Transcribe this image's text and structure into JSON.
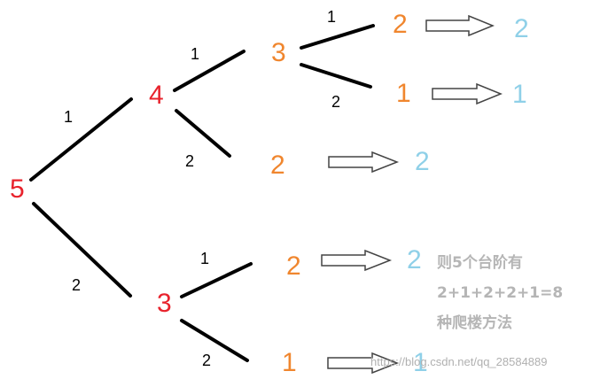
{
  "colors": {
    "root": "#e8232d",
    "mid": "#e8232d",
    "orange": "#f0862e",
    "cyan": "#8fd0e8",
    "line": "#000000",
    "note": "#b5b5b5"
  },
  "tree": {
    "root": "5",
    "n4": "4",
    "n3a": "3",
    "n3b": "3",
    "leaf_3a_1": "2",
    "leaf_3a_2": "1",
    "leaf_4_2": "2",
    "leaf_3b_1": "2",
    "leaf_3b_2": "1",
    "result_1": "2",
    "result_2": "1",
    "result_3": "2",
    "result_4": "2",
    "result_5": "1"
  },
  "edges": {
    "root_to_4": "1",
    "root_to_3": "2",
    "n4_to_3": "1",
    "n4_to_2": "2",
    "n3a_to_2": "1",
    "n3a_to_1": "2",
    "n3b_to_2": "1",
    "n3b_to_1": "2"
  },
  "note": {
    "line1": "则5个台阶有",
    "line2": "2+1+2+2+1=8",
    "line3": "种爬楼方法"
  },
  "watermark": "https://blog.csdn.net/qq_28584889"
}
